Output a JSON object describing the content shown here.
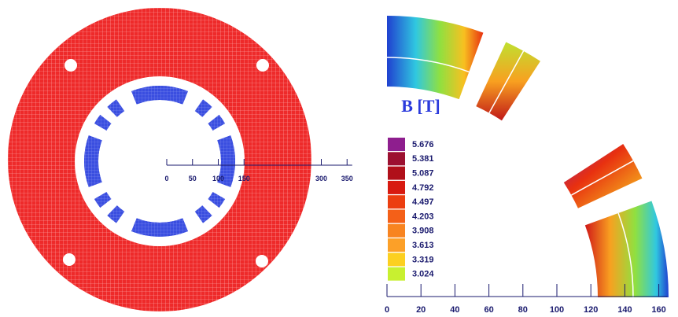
{
  "left_panel": {
    "axis_ticks": [
      0,
      50,
      100,
      150,
      300,
      350
    ]
  },
  "right_panel": {
    "title": "B [T]",
    "legend": [
      {
        "label": 5.676,
        "color": "#8e1e8e"
      },
      {
        "label": 5.381,
        "color": "#9c1030"
      },
      {
        "label": 5.087,
        "color": "#b0101a"
      },
      {
        "label": 4.792,
        "color": "#d81a10"
      },
      {
        "label": 4.497,
        "color": "#ec3e10"
      },
      {
        "label": 4.203,
        "color": "#f46018"
      },
      {
        "label": 3.908,
        "color": "#f88420"
      },
      {
        "label": 3.613,
        "color": "#fca028"
      },
      {
        "label": 3.319,
        "color": "#fcd020"
      },
      {
        "label": 3.024,
        "color": "#c8f030"
      }
    ],
    "axis_ticks": [
      0,
      20,
      40,
      60,
      80,
      100,
      120,
      140,
      160
    ]
  }
}
